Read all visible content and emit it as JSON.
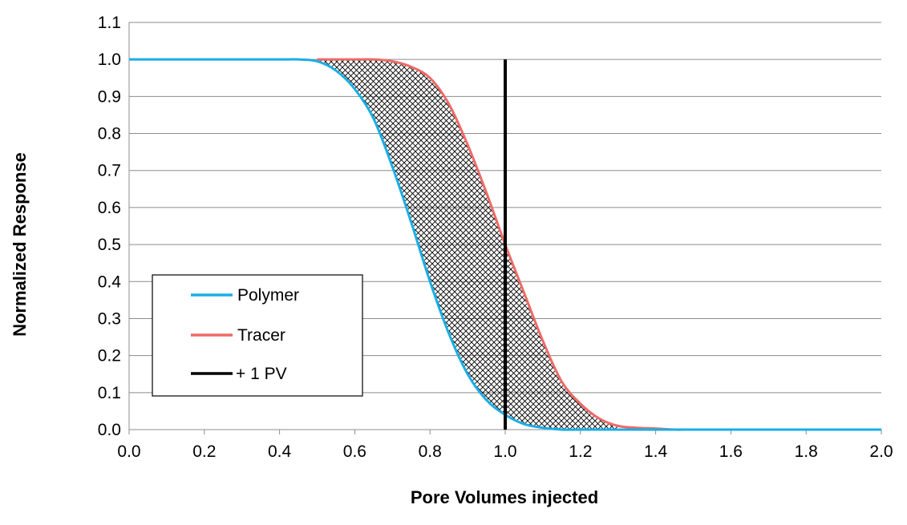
{
  "chart_data": {
    "type": "line",
    "title": "",
    "xlabel": "Pore Volumes injected",
    "ylabel": "Normalized Response",
    "xlim": [
      0.0,
      2.0
    ],
    "ylim": [
      0.0,
      1.1
    ],
    "x_ticks": [
      "0.0",
      "0.2",
      "0.4",
      "0.6",
      "0.8",
      "1.0",
      "1.2",
      "1.4",
      "1.6",
      "1.8",
      "2.0"
    ],
    "y_ticks": [
      "0.0",
      "0.1",
      "0.2",
      "0.3",
      "0.4",
      "0.5",
      "0.6",
      "0.7",
      "0.8",
      "0.9",
      "1.0",
      "1.1"
    ],
    "grid": "horizontal",
    "legend_position": "bottom-left",
    "shaded_region": "crosshatch between Polymer and Tracer curves",
    "series": [
      {
        "name": "Polymer",
        "color": "#1aaee6",
        "x": [
          0.0,
          0.1,
          0.2,
          0.3,
          0.4,
          0.45,
          0.5,
          0.55,
          0.6,
          0.65,
          0.7,
          0.75,
          0.8,
          0.85,
          0.9,
          0.95,
          1.0,
          1.05,
          1.1,
          1.15,
          1.2,
          1.3,
          1.4,
          1.6,
          1.8,
          2.0
        ],
        "y": [
          1.0,
          1.0,
          1.0,
          1.0,
          1.0,
          1.0,
          0.995,
          0.97,
          0.92,
          0.84,
          0.71,
          0.56,
          0.4,
          0.26,
          0.15,
          0.08,
          0.04,
          0.015,
          0.005,
          0.0,
          0.0,
          0.0,
          0.0,
          0.0,
          0.0,
          0.0
        ]
      },
      {
        "name": "Tracer",
        "color": "#ee6b66",
        "x": [
          0.5,
          0.55,
          0.6,
          0.65,
          0.7,
          0.75,
          0.8,
          0.85,
          0.9,
          0.95,
          1.0,
          1.05,
          1.1,
          1.15,
          1.2,
          1.25,
          1.3,
          1.35,
          1.4,
          1.45,
          1.5,
          1.6,
          1.8,
          2.0
        ],
        "y": [
          1.0,
          1.0,
          1.0,
          1.0,
          0.995,
          0.98,
          0.95,
          0.88,
          0.77,
          0.64,
          0.5,
          0.37,
          0.24,
          0.13,
          0.07,
          0.03,
          0.01,
          0.005,
          0.003,
          0.0,
          0.0,
          0.0,
          0.0,
          0.0
        ]
      },
      {
        "name": "+ 1 PV",
        "color": "#000000",
        "x": [
          1.0,
          1.0
        ],
        "y": [
          0.0,
          1.0
        ]
      }
    ]
  }
}
